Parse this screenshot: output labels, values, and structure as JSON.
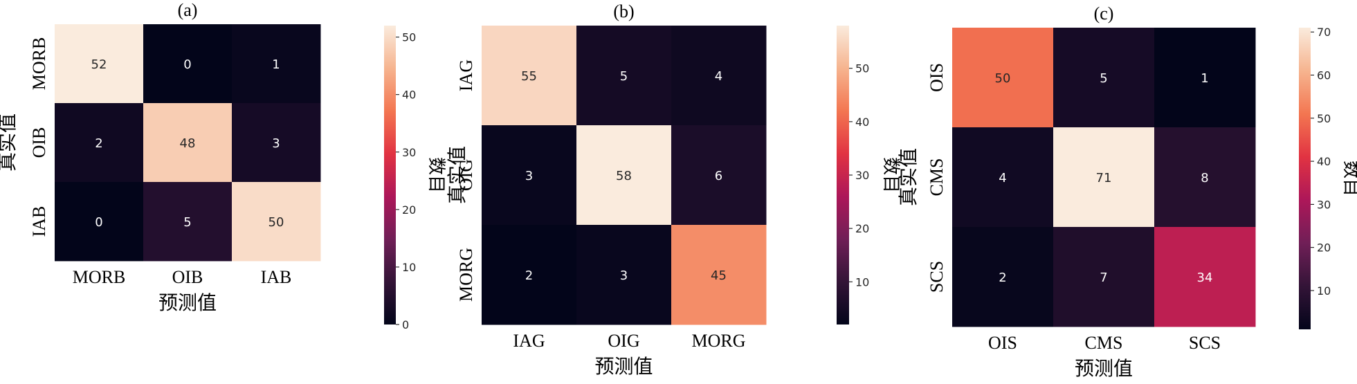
{
  "colormap": {
    "name": "rocket",
    "stops": [
      "#03051a",
      "#331437",
      "#701f57",
      "#ad1759",
      "#e13342",
      "#f37651",
      "#f6b48f",
      "#faebdd"
    ]
  },
  "chart_data": [
    {
      "type": "heatmap",
      "title": "(a)",
      "xlabel": "预测值",
      "ylabel": "真实值",
      "rows": [
        "MORB",
        "OIB",
        "IAB"
      ],
      "cols": [
        "MORB",
        "OIB",
        "IAB"
      ],
      "values": [
        [
          52,
          0,
          1
        ],
        [
          2,
          48,
          3
        ],
        [
          0,
          5,
          50
        ]
      ],
      "colorbar": {
        "label": "数目",
        "min": 0,
        "max": 52,
        "ticks": [
          0,
          10,
          20,
          30,
          40,
          50
        ]
      }
    },
    {
      "type": "heatmap",
      "title": "(b)",
      "xlabel": "预测值",
      "ylabel": "真实值",
      "rows": [
        "IAG",
        "OIG",
        "MORG"
      ],
      "cols": [
        "IAG",
        "OIG",
        "MORG"
      ],
      "values": [
        [
          55,
          5,
          4
        ],
        [
          3,
          58,
          6
        ],
        [
          2,
          3,
          45
        ]
      ],
      "colorbar": {
        "label": "数目",
        "min": 2,
        "max": 58,
        "ticks": [
          10,
          20,
          30,
          40,
          50
        ]
      }
    },
    {
      "type": "heatmap",
      "title": "(c)",
      "xlabel": "预测值",
      "ylabel": "真实值",
      "rows": [
        "OIS",
        "CMS",
        "SCS"
      ],
      "cols": [
        "OIS",
        "CMS",
        "SCS"
      ],
      "values": [
        [
          50,
          5,
          1
        ],
        [
          4,
          71,
          8
        ],
        [
          2,
          7,
          34
        ]
      ],
      "colorbar": {
        "label": "数目",
        "min": 1,
        "max": 71,
        "ticks": [
          10,
          20,
          30,
          40,
          50,
          60,
          70
        ]
      }
    }
  ]
}
